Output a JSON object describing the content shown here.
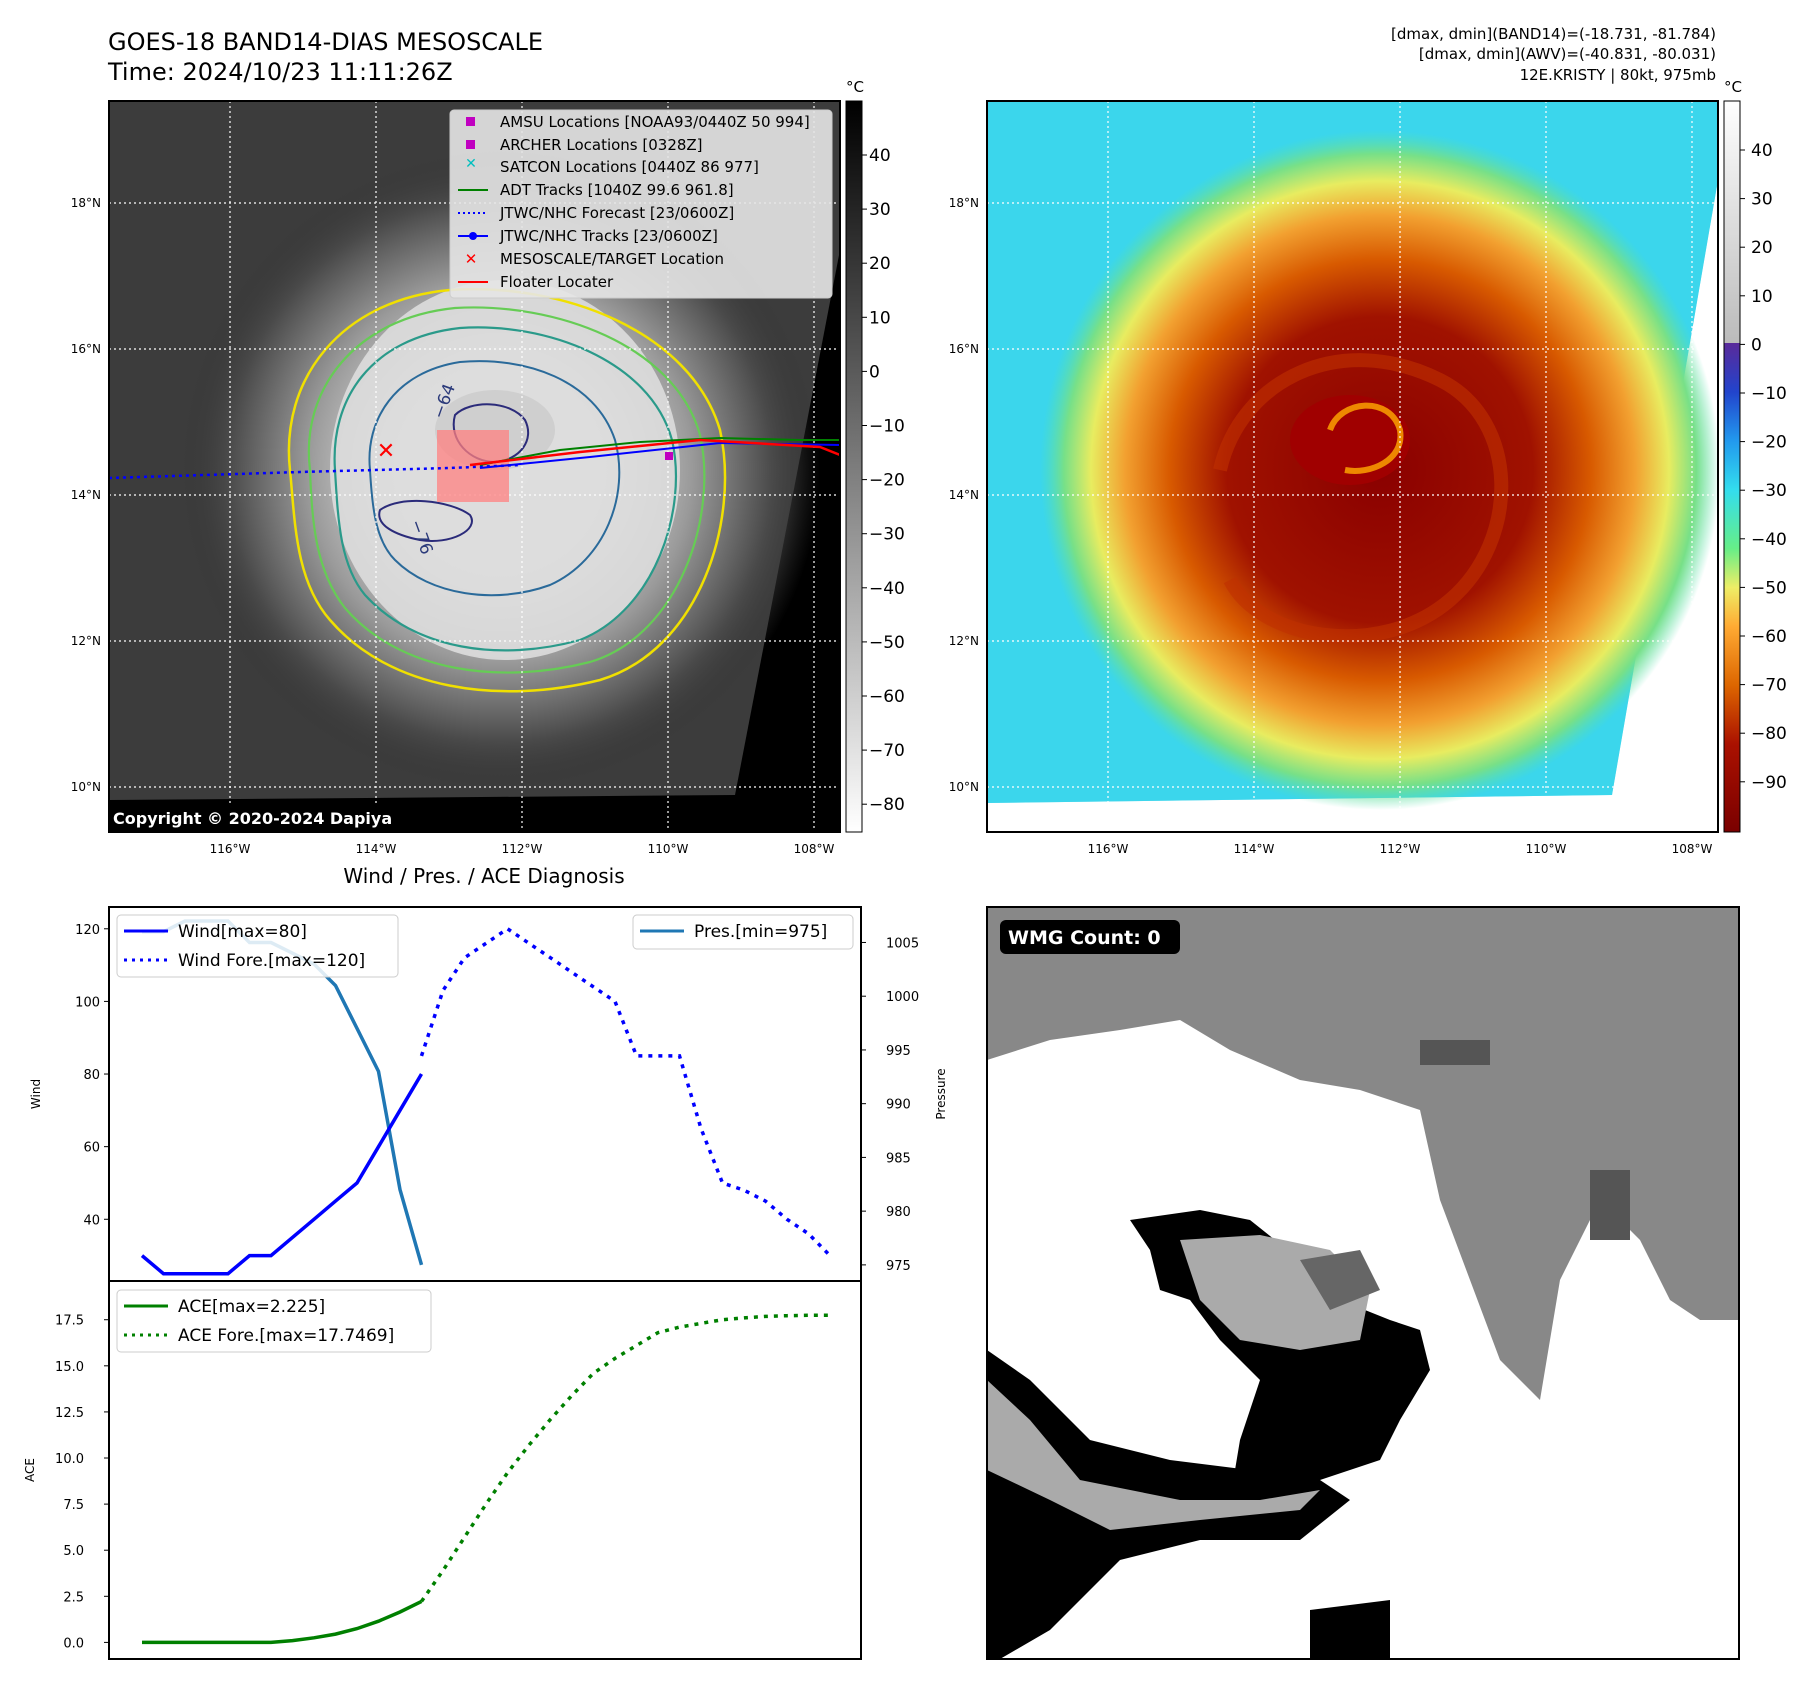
{
  "header": {
    "title": "GOES-18 BAND14-DIAS MESOSCALE",
    "time": "Time: 2024/10/23 11:11:26Z",
    "dmax_band14": "[dmax, dmin](BAND14)=(-18.731, -81.784)",
    "dmax_awv": "[dmax, dmin](AWV)=(-40.831, -80.031)",
    "storm": "12E.KRISTY | 80kt, 975mb"
  },
  "copyright": "Copyright © 2020-2024 Dapiya",
  "colors": {
    "wind": "#0000ff",
    "pressure": "#1f77b4",
    "ace": "#008000",
    "target": "#ff0000"
  },
  "maps": {
    "lat_labels": [
      "18°N",
      "16°N",
      "14°N",
      "12°N",
      "10°N"
    ],
    "lon_labels": [
      "116°W",
      "114°W",
      "112°W",
      "110°W",
      "108°W"
    ],
    "left_colorbar": {
      "unit": "°C",
      "ticks": [
        "40",
        "30",
        "20",
        "10",
        "0",
        "−10",
        "−20",
        "−30",
        "−40",
        "−50",
        "−60",
        "−70",
        "−80"
      ]
    },
    "right_colorbar": {
      "unit": "°C",
      "ticks": [
        "40",
        "30",
        "20",
        "10",
        "0",
        "−10",
        "−20",
        "−30",
        "−40",
        "−50",
        "−60",
        "−70",
        "−80",
        "−90"
      ]
    },
    "contour_labels": [
      "−64",
      "−76"
    ],
    "legend": [
      {
        "label": "AMSU Locations [NOAA93/0440Z 50 994]",
        "marker": "square",
        "color": "#c000c0"
      },
      {
        "label": "ARCHER Locations [0328Z]",
        "marker": "square",
        "color": "#c000c0"
      },
      {
        "label": "SATCON Locations [0440Z 86 977]",
        "marker": "x",
        "color": "#00bfbf"
      },
      {
        "label": "ADT Tracks [1040Z 99.6 961.8]",
        "marker": "line",
        "color": "#008000"
      },
      {
        "label": "JTWC/NHC Forecast [23/0600Z]",
        "marker": "dotted",
        "color": "#0000ff"
      },
      {
        "label": "JTWC/NHC Tracks [23/0600Z]",
        "marker": "line-dot",
        "color": "#0000ff"
      },
      {
        "label": "MESOSCALE/TARGET Location",
        "marker": "x",
        "color": "#ff0000"
      },
      {
        "label": "Floater Locater",
        "marker": "line",
        "color": "#ff0000"
      }
    ]
  },
  "wmg": {
    "label": "WMG Count: 0"
  },
  "chart_data": [
    {
      "type": "line",
      "title": "Wind / Pres. / ACE Diagnosis",
      "ylabel": "Wind",
      "y2label": "Pressure",
      "ylim": [
        23,
        126
      ],
      "y2lim": [
        973.5,
        1008.3
      ],
      "yticks": [
        40,
        60,
        80,
        100,
        120
      ],
      "y2ticks": [
        975,
        980,
        985,
        990,
        995,
        1000,
        1005
      ],
      "legend_left": "top-left",
      "legend_right": "top-right",
      "series": [
        {
          "name": "Wind[max=80]",
          "style": "solid",
          "axis": "left",
          "x": [
            0,
            1,
            2,
            3,
            4,
            5,
            6,
            7,
            8,
            9,
            10,
            11,
            12,
            13
          ],
          "values": [
            30,
            25,
            25,
            25,
            25,
            30,
            30,
            35,
            40,
            45,
            50,
            60,
            70,
            80
          ]
        },
        {
          "name": "Wind Fore.[max=120]",
          "style": "dotted",
          "axis": "left",
          "x": [
            13,
            14,
            15,
            16,
            17,
            18,
            19,
            20,
            21,
            22,
            23,
            24,
            25,
            26,
            27,
            28,
            29,
            30,
            31,
            32
          ],
          "values": [
            85,
            103,
            112,
            116,
            120,
            116,
            112,
            108,
            104,
            100,
            85,
            85,
            85,
            65,
            50,
            48,
            45,
            40,
            36,
            30
          ]
        },
        {
          "name": "Pres.[min=975]",
          "style": "solid",
          "axis": "right",
          "x": [
            0,
            1,
            2,
            3,
            4,
            5,
            6,
            7,
            8,
            9,
            10,
            11,
            12,
            13
          ],
          "values": [
            1006,
            1006,
            1007,
            1007,
            1007,
            1005,
            1005,
            1004,
            1003,
            1001,
            997,
            993,
            982,
            975
          ]
        }
      ]
    },
    {
      "type": "line",
      "ylabel": "ACE",
      "ylim": [
        -0.9,
        19.6
      ],
      "yticks": [
        0.0,
        2.5,
        5.0,
        7.5,
        10.0,
        12.5,
        15.0,
        17.5
      ],
      "ytick_labels": [
        "0.0",
        "2.5",
        "5.0",
        "7.5",
        "10.0",
        "12.5",
        "15.0",
        "17.5"
      ],
      "legend": "top-left",
      "series": [
        {
          "name": "ACE[max=2.225]",
          "style": "solid",
          "x": [
            0,
            1,
            2,
            3,
            4,
            5,
            6,
            7,
            8,
            9,
            10,
            11,
            12,
            13
          ],
          "values": [
            0,
            0,
            0,
            0,
            0,
            0,
            0,
            0.1,
            0.25,
            0.45,
            0.75,
            1.15,
            1.65,
            2.225
          ]
        },
        {
          "name": "ACE Fore.[max=17.7469]",
          "style": "dotted",
          "x": [
            13,
            14,
            15,
            16,
            17,
            18,
            19,
            20,
            21,
            22,
            23,
            24,
            25,
            26,
            27,
            28,
            29,
            30,
            31,
            32
          ],
          "values": [
            2.225,
            3.9,
            5.7,
            7.5,
            9.2,
            10.7,
            12.1,
            13.4,
            14.6,
            15.4,
            16.1,
            16.8,
            17.1,
            17.3,
            17.5,
            17.6,
            17.68,
            17.72,
            17.74,
            17.7469
          ]
        }
      ]
    }
  ]
}
